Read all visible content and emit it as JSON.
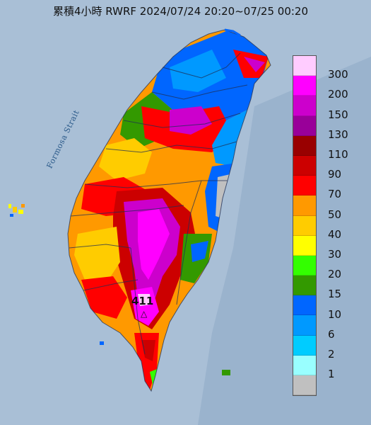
{
  "title": "累積4小時 RWRF 2024/07/24 20:20~07/25 00:20",
  "strait_label": "Formosa Strait",
  "max_value": "411",
  "max_marker_icon": "triangle-marker-icon",
  "legend": [
    {
      "label": "300",
      "color": "#ffccff"
    },
    {
      "label": "200",
      "color": "#ff00ff"
    },
    {
      "label": "150",
      "color": "#cc00cc"
    },
    {
      "label": "130",
      "color": "#990099"
    },
    {
      "label": "110",
      "color": "#990000"
    },
    {
      "label": "90",
      "color": "#cc0000"
    },
    {
      "label": "70",
      "color": "#ff0000"
    },
    {
      "label": "50",
      "color": "#ff9900"
    },
    {
      "label": "40",
      "color": "#ffcc00"
    },
    {
      "label": "30",
      "color": "#ffff00"
    },
    {
      "label": "20",
      "color": "#33ff00"
    },
    {
      "label": "15",
      "color": "#339900"
    },
    {
      "label": "10",
      "color": "#0066ff"
    },
    {
      "label": "6",
      "color": "#0099ff"
    },
    {
      "label": "2",
      "color": "#00ccff"
    },
    {
      "label": "1",
      "color": "#99ffff"
    },
    {
      "label": "",
      "color": "#c0c0c0"
    }
  ]
}
